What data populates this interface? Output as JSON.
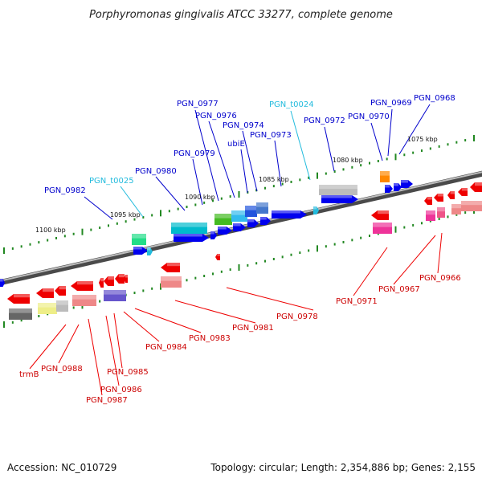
{
  "title": "Porphyromonas gingivalis ATCC 33277, complete genome",
  "footer": {
    "accession": "Accession: NC_010729",
    "topology": "Topology: circular; Length: 2,354,886 bp; Genes: 2,155"
  },
  "scale_ticks": [
    "1075 kbp",
    "1080 kbp",
    "1085 kbp",
    "1090 kbp",
    "1095 kbp",
    "1100 kbp"
  ],
  "upper_labels": [
    "PGN_0968",
    "PGN_0969",
    "PGN_0970",
    "PGN_0972",
    "PGN_t0024",
    "PGN_0973",
    "PGN_0974",
    "ubiE",
    "PGN_0976",
    "PGN_0977",
    "PGN_0979",
    "PGN_0980",
    "PGN_t0025",
    "PGN_0982"
  ],
  "lower_labels": [
    "PGN_0966",
    "PGN_0967",
    "PGN_0971",
    "PGN_0978",
    "PGN_0981",
    "PGN_0983",
    "PGN_0984",
    "PGN_0985",
    "PGN_0986",
    "PGN_0987",
    "PGN_0988",
    "trmB"
  ],
  "colors": {
    "forward_strand": "#0000ee",
    "reverse_strand": "#ee0000",
    "trna": "#22bbdd",
    "scale_dots": "#228822"
  }
}
